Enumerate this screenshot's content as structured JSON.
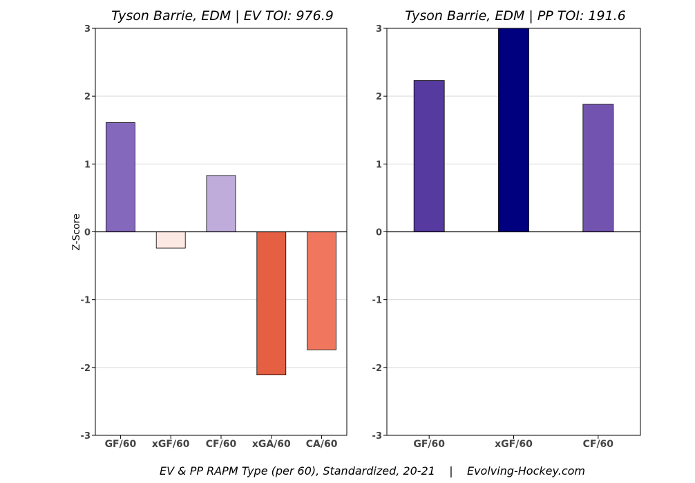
{
  "chart_data": [
    {
      "type": "bar",
      "title": "Tyson Barrie, EDM  |  EV TOI: 976.9",
      "categories": [
        "GF/60",
        "xGF/60",
        "CF/60",
        "xGA/60",
        "CA/60"
      ],
      "values": [
        1.61,
        -0.24,
        0.83,
        -2.11,
        -1.74
      ],
      "colors": [
        "#8468bb",
        "#fde9e3",
        "#bfacdb",
        "#e55f42",
        "#f0775e"
      ],
      "ylabel": "Z-Score",
      "ylim": [
        -3,
        3
      ],
      "yticks": [
        3,
        2,
        1,
        0,
        -1,
        -2,
        -3
      ],
      "ytick_labels": [
        "3",
        "2",
        "1",
        "0",
        "-1",
        "-2",
        "-3"
      ],
      "grid": true
    },
    {
      "type": "bar",
      "title": "Tyson Barrie, EDM  |  PP TOI: 191.6",
      "categories": [
        "GF/60",
        "xGF/60",
        "CF/60"
      ],
      "values": [
        2.23,
        3.0,
        1.88
      ],
      "colors": [
        "#563aa0",
        "#00007f",
        "#7254b0"
      ],
      "ylabel": "",
      "ylim": [
        -3,
        3
      ],
      "yticks": [
        3,
        2,
        1,
        0,
        -1,
        -2,
        -3
      ],
      "ytick_labels": [
        "3",
        "2",
        "1",
        "0",
        "-1",
        "-2",
        "-3"
      ],
      "grid": true
    }
  ],
  "footer": "EV & PP RAPM Type (per 60), Standardized, 20-21    |    Evolving-Hockey.com"
}
